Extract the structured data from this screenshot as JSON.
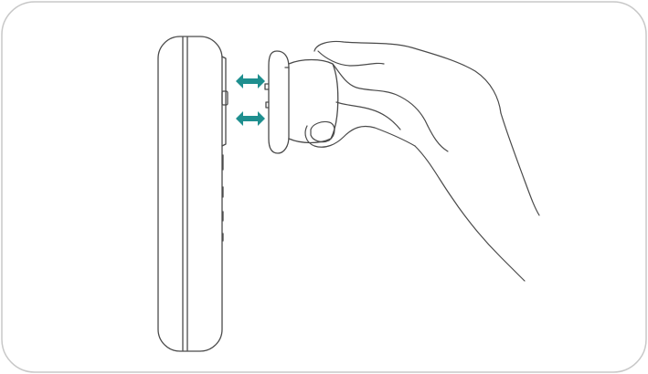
{
  "illustration": {
    "subject": "hand-removing-round-module-from-device-side",
    "icons": {
      "device": "device-side-view-icon",
      "module": "round-module-icon",
      "hand": "hand-icon",
      "arrow_upper": "double-arrow-icon",
      "arrow_lower": "double-arrow-icon"
    },
    "colors": {
      "line": "#4a4a4a",
      "border": "#c8c8c8",
      "arrow": "#1f8f8f",
      "background": "#ffffff"
    }
  }
}
